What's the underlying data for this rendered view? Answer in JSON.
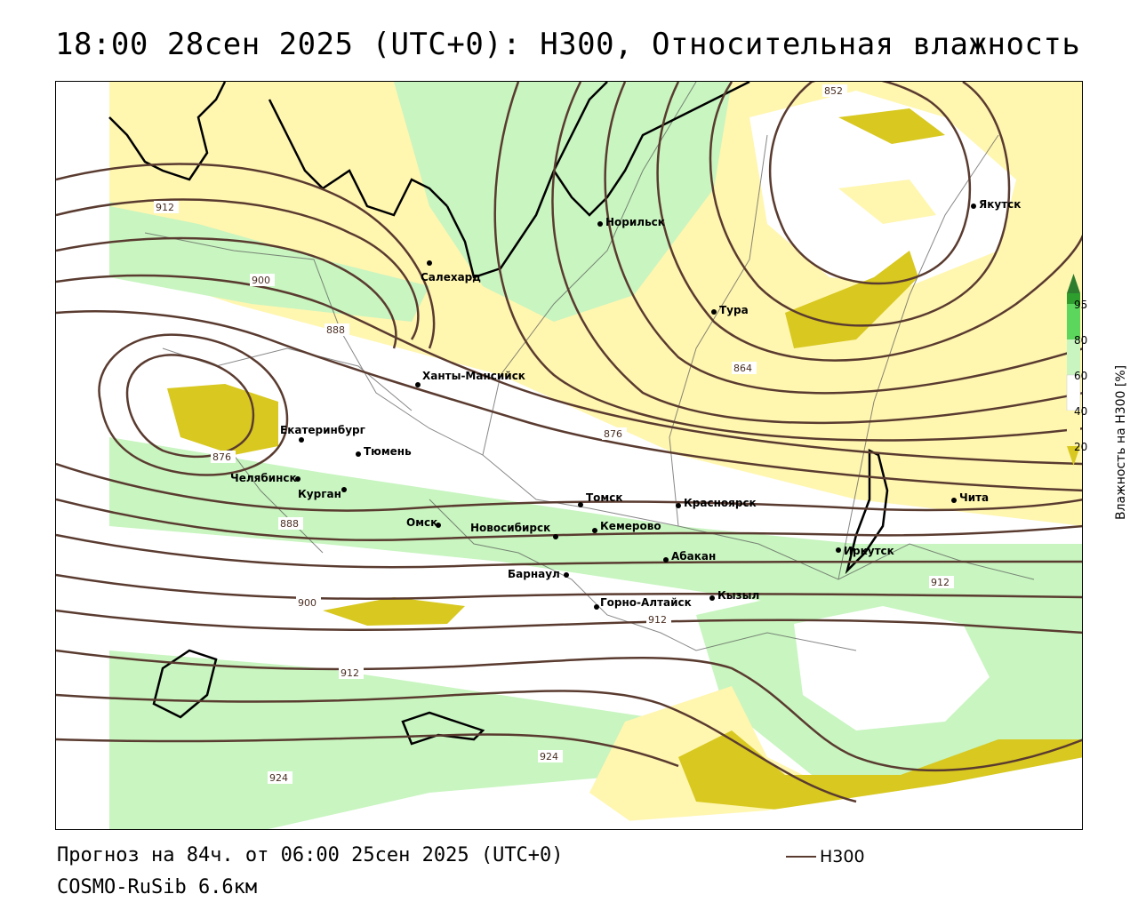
{
  "title": "18:00 28сен 2025 (UTC+0): H300, Относительная влажность",
  "footer": {
    "forecast": "Прогноз на 84ч. от 06:00 25сен 2025 (UTC+0)",
    "model": "COSMO-RuSib 6.6км"
  },
  "legend": {
    "line_label": "H300",
    "line_color": "#5a3b30"
  },
  "colorbar": {
    "title": "Влажность на H300 [%]",
    "ticks": [
      "95",
      "80",
      "60",
      "40",
      "20"
    ],
    "colors": {
      "c95": "#2e9e2e",
      "c80": "#5cd65c",
      "c60": "#c8f5c0",
      "c40": "#ffffff",
      "c20": "#fff6b0",
      "c0": "#d8c820"
    }
  },
  "cities": [
    {
      "name": "Норильск"
    },
    {
      "name": "Якутск"
    },
    {
      "name": "Салехард"
    },
    {
      "name": "Тура"
    },
    {
      "name": "Ханты-Мансийск"
    },
    {
      "name": "Екатеринбург"
    },
    {
      "name": "Тюмень"
    },
    {
      "name": "Челябинск"
    },
    {
      "name": "Курган"
    },
    {
      "name": "Омск"
    },
    {
      "name": "Томск"
    },
    {
      "name": "Красноярск"
    },
    {
      "name": "Новосибирск"
    },
    {
      "name": "Кемерово"
    },
    {
      "name": "Абакан"
    },
    {
      "name": "Барнаул"
    },
    {
      "name": "Горно-Алтайск"
    },
    {
      "name": "Кызыл"
    },
    {
      "name": "Иркутск"
    },
    {
      "name": "Чита"
    }
  ],
  "contour_labels": [
    "852",
    "912",
    "900",
    "888",
    "864",
    "876",
    "876",
    "888",
    "900",
    "912",
    "912",
    "912",
    "924",
    "924"
  ]
}
